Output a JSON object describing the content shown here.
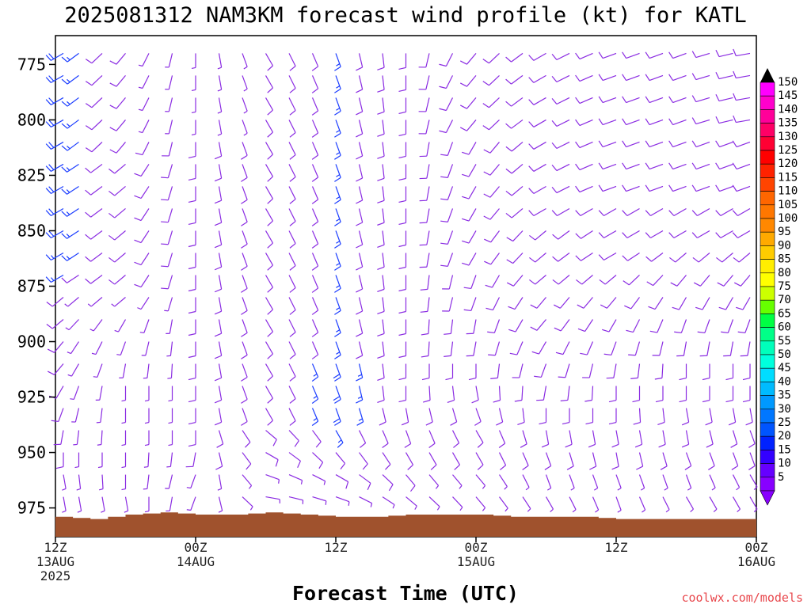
{
  "title": "2025081312 NAM3KM forecast wind profile (kt) for KATL",
  "credit": "coolwx.com/models",
  "colorbar": {
    "labels": [
      "150",
      "145",
      "140",
      "135",
      "130",
      "125",
      "120",
      "115",
      "110",
      "105",
      "100",
      "95",
      "90",
      "85",
      "80",
      "75",
      "70",
      "65",
      "60",
      "55",
      "50",
      "45",
      "40",
      "35",
      "30",
      "25",
      "20",
      "15",
      "10",
      "5"
    ],
    "colors": [
      "#ff00ff",
      "#ff00cc",
      "#ff0099",
      "#ff0066",
      "#ff0033",
      "#ff0000",
      "#ff2200",
      "#ff4400",
      "#ff6600",
      "#ff7700",
      "#ff8800",
      "#ffaa00",
      "#ffcc00",
      "#ffee00",
      "#ffff00",
      "#ccff00",
      "#66ff00",
      "#00ff44",
      "#00ff88",
      "#00ffbb",
      "#00ffdd",
      "#00ddff",
      "#00bbff",
      "#0099ff",
      "#0077ff",
      "#0055ff",
      "#0022ff",
      "#3300ff",
      "#6600ff",
      "#8800ff"
    ]
  },
  "chart_data": {
    "type": "wind-barb time-height",
    "title": "2025081312 NAM3KM forecast wind profile (kt) for KATL",
    "xlabel": "Forecast Time (UTC)",
    "ylabel": "",
    "yticks": [
      775,
      800,
      825,
      850,
      875,
      900,
      925,
      950,
      975
    ],
    "ylim": [
      762,
      988
    ],
    "xticks": [
      {
        "h": 0,
        "line1": "12Z",
        "line2": "13AUG",
        "line3": "2025"
      },
      {
        "h": 12,
        "line1": "00Z",
        "line2": "14AUG",
        "line3": ""
      },
      {
        "h": 24,
        "line1": "12Z",
        "line2": "",
        "line3": ""
      },
      {
        "h": 36,
        "line1": "00Z",
        "line2": "15AUG",
        "line3": ""
      },
      {
        "h": 48,
        "line1": "12Z",
        "line2": "",
        "line3": ""
      },
      {
        "h": 60,
        "line1": "00Z",
        "line2": "16AUG",
        "line3": ""
      }
    ],
    "xlim": [
      0,
      60
    ],
    "levels_mb": [
      770,
      780,
      790,
      800,
      810,
      820,
      830,
      840,
      850,
      860,
      870,
      880,
      890,
      900,
      910,
      920,
      930,
      940,
      950,
      960,
      970,
      980
    ],
    "sample_profiles": [
      {
        "hour": 0,
        "dir_deg": [
          240,
          240,
          240,
          240,
          240,
          240,
          240,
          240,
          240,
          240,
          240,
          230,
          230,
          220,
          220,
          210,
          200,
          190,
          180,
          170,
          170,
          160
        ],
        "speed_kt": [
          20,
          20,
          20,
          20,
          20,
          20,
          20,
          20,
          20,
          18,
          15,
          12,
          10,
          10,
          10,
          10,
          10,
          10,
          10,
          5,
          5,
          5
        ]
      },
      {
        "hour": 6,
        "dir_deg": [
          220,
          220,
          220,
          220,
          220,
          230,
          230,
          230,
          230,
          230,
          230,
          230,
          210,
          200,
          190,
          180,
          180,
          180,
          180,
          180,
          170,
          160
        ],
        "speed_kt": [
          10,
          10,
          10,
          10,
          10,
          10,
          10,
          10,
          10,
          10,
          10,
          5,
          5,
          5,
          5,
          5,
          5,
          5,
          5,
          5,
          5,
          5
        ]
      },
      {
        "hour": 12,
        "dir_deg": [
          180,
          180,
          180,
          180,
          180,
          180,
          180,
          180,
          180,
          180,
          180,
          180,
          180,
          180,
          180,
          180,
          180,
          180,
          190,
          200,
          200,
          200
        ],
        "speed_kt": [
          5,
          5,
          5,
          5,
          10,
          10,
          10,
          10,
          10,
          10,
          10,
          10,
          10,
          10,
          10,
          10,
          10,
          10,
          10,
          5,
          5,
          5
        ]
      },
      {
        "hour": 18,
        "dir_deg": [
          150,
          150,
          150,
          150,
          150,
          150,
          150,
          150,
          150,
          150,
          150,
          150,
          150,
          150,
          150,
          150,
          150,
          130,
          120,
          110,
          100,
          100
        ],
        "speed_kt": [
          10,
          10,
          10,
          10,
          10,
          10,
          10,
          10,
          10,
          10,
          10,
          10,
          10,
          10,
          10,
          10,
          10,
          10,
          10,
          5,
          5,
          5
        ]
      },
      {
        "hour": 24,
        "dir_deg": [
          160,
          160,
          160,
          160,
          160,
          160,
          160,
          160,
          160,
          160,
          160,
          160,
          160,
          160,
          160,
          160,
          160,
          150,
          140,
          120,
          110,
          100
        ],
        "speed_kt": [
          15,
          15,
          15,
          15,
          15,
          15,
          15,
          15,
          15,
          15,
          15,
          15,
          15,
          15,
          20,
          20,
          20,
          15,
          10,
          10,
          5,
          5
        ]
      },
      {
        "hour": 30,
        "dir_deg": [
          180,
          180,
          180,
          180,
          180,
          180,
          180,
          180,
          180,
          180,
          180,
          180,
          180,
          180,
          180,
          180,
          170,
          160,
          150,
          140,
          130,
          120
        ],
        "speed_kt": [
          10,
          10,
          10,
          10,
          10,
          10,
          10,
          10,
          10,
          10,
          10,
          10,
          10,
          10,
          10,
          10,
          10,
          10,
          10,
          10,
          5,
          5
        ]
      },
      {
        "hour": 36,
        "dir_deg": [
          220,
          220,
          220,
          220,
          210,
          210,
          210,
          210,
          210,
          210,
          200,
          200,
          190,
          190,
          180,
          170,
          160,
          150,
          150,
          140,
          140,
          130
        ],
        "speed_kt": [
          10,
          10,
          10,
          10,
          10,
          10,
          10,
          10,
          10,
          10,
          10,
          10,
          10,
          10,
          10,
          10,
          10,
          10,
          10,
          5,
          5,
          5
        ]
      },
      {
        "hour": 42,
        "dir_deg": [
          240,
          240,
          240,
          240,
          240,
          240,
          240,
          240,
          230,
          230,
          230,
          220,
          220,
          210,
          200,
          190,
          180,
          170,
          160,
          160,
          150,
          150
        ],
        "speed_kt": [
          10,
          10,
          10,
          10,
          10,
          10,
          10,
          10,
          10,
          10,
          10,
          10,
          10,
          10,
          10,
          10,
          10,
          10,
          10,
          5,
          5,
          5
        ]
      },
      {
        "hour": 48,
        "dir_deg": [
          250,
          250,
          250,
          250,
          250,
          250,
          250,
          240,
          240,
          240,
          230,
          220,
          210,
          200,
          190,
          180,
          180,
          170,
          170,
          160,
          160,
          150
        ],
        "speed_kt": [
          10,
          10,
          10,
          10,
          10,
          10,
          10,
          10,
          10,
          10,
          10,
          10,
          10,
          10,
          10,
          10,
          10,
          10,
          10,
          5,
          5,
          5
        ]
      },
      {
        "hour": 54,
        "dir_deg": [
          250,
          250,
          250,
          250,
          250,
          250,
          250,
          240,
          240,
          230,
          220,
          210,
          200,
          190,
          180,
          180,
          170,
          170,
          160,
          160,
          150,
          150
        ],
        "speed_kt": [
          10,
          10,
          10,
          10,
          10,
          10,
          10,
          10,
          10,
          10,
          10,
          10,
          10,
          10,
          10,
          10,
          10,
          10,
          10,
          5,
          5,
          5
        ]
      },
      {
        "hour": 60,
        "dir_deg": [
          260,
          260,
          260,
          260,
          250,
          250,
          250,
          240,
          240,
          230,
          220,
          210,
          200,
          190,
          180,
          180,
          170,
          160,
          160,
          150,
          150,
          150
        ],
        "speed_kt": [
          10,
          10,
          10,
          10,
          10,
          10,
          10,
          10,
          10,
          10,
          10,
          10,
          10,
          10,
          10,
          10,
          10,
          10,
          10,
          5,
          5,
          5
        ]
      }
    ],
    "surface_pressure_mb": [
      {
        "hour": 0,
        "mb": 979
      },
      {
        "hour": 3,
        "mb": 980
      },
      {
        "hour": 6,
        "mb": 978
      },
      {
        "hour": 9,
        "mb": 977
      },
      {
        "hour": 12,
        "mb": 978
      },
      {
        "hour": 15,
        "mb": 978
      },
      {
        "hour": 18,
        "mb": 977
      },
      {
        "hour": 21,
        "mb": 978
      },
      {
        "hour": 24,
        "mb": 979
      },
      {
        "hour": 27,
        "mb": 979
      },
      {
        "hour": 30,
        "mb": 978
      },
      {
        "hour": 33,
        "mb": 978
      },
      {
        "hour": 36,
        "mb": 978
      },
      {
        "hour": 39,
        "mb": 979
      },
      {
        "hour": 42,
        "mb": 979
      },
      {
        "hour": 45,
        "mb": 979
      },
      {
        "hour": 48,
        "mb": 980
      },
      {
        "hour": 51,
        "mb": 980
      },
      {
        "hour": 54,
        "mb": 980
      },
      {
        "hour": 57,
        "mb": 980
      },
      {
        "hour": 60,
        "mb": 980
      }
    ],
    "terrain_color": "#a0522d",
    "colorbar_unit": "kt"
  }
}
